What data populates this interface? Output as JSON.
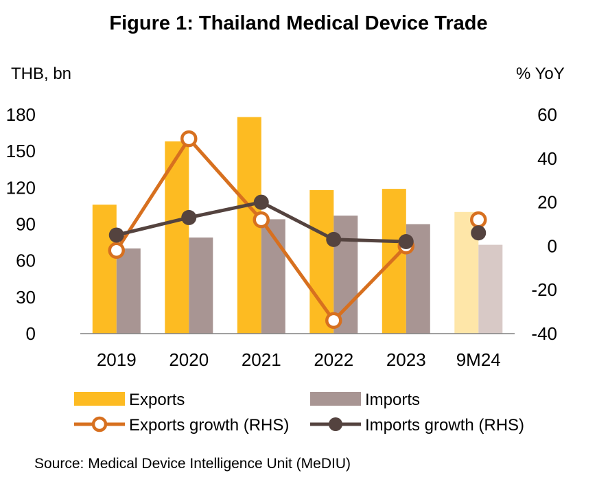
{
  "title": "Figure 1: Thailand Medical Device Trade",
  "source": "Source: Medical Device Intelligence Unit (MeDIU)",
  "colors": {
    "exports": "#FDBB22",
    "imports": "#A89593",
    "exports_est": "#FEE6A8",
    "imports_est": "#D8C9C6",
    "exports_growth": "#D7701F",
    "imports_growth": "#54433F",
    "axis": "#808080"
  },
  "chart_data": {
    "type": "bar",
    "title": "Figure 1: Thailand Medical Device Trade",
    "categories": [
      "2019",
      "2020",
      "2021",
      "2022",
      "2023",
      "9M24"
    ],
    "estimated_categories": [
      "9M24"
    ],
    "ylabel": "THB, bn",
    "ylim": [
      0,
      180
    ],
    "yticks": [
      "0",
      "30",
      "60",
      "90",
      "120",
      "150",
      "180"
    ],
    "y2label": "% YoY",
    "y2lim": [
      -40,
      60
    ],
    "y2ticks": [
      "-40",
      "-20",
      "0",
      "20",
      "40",
      "60"
    ],
    "grid": false,
    "legend_position": "bottom",
    "series": [
      {
        "name": "Exports",
        "kind": "bar",
        "axis": "left",
        "values": [
          106,
          158,
          178,
          118,
          119,
          100
        ]
      },
      {
        "name": "Imports",
        "kind": "bar",
        "axis": "left",
        "values": [
          70,
          79,
          94,
          97,
          90,
          73
        ]
      },
      {
        "name": "Exports growth (RHS)",
        "kind": "line",
        "marker": "hollow-circle",
        "axis": "right",
        "values": [
          -2,
          49,
          12,
          -34,
          0,
          12
        ]
      },
      {
        "name": "Imports growth (RHS)",
        "kind": "line",
        "marker": "filled-circle",
        "axis": "right",
        "values": [
          5,
          13,
          20,
          3,
          2,
          6
        ]
      }
    ]
  }
}
